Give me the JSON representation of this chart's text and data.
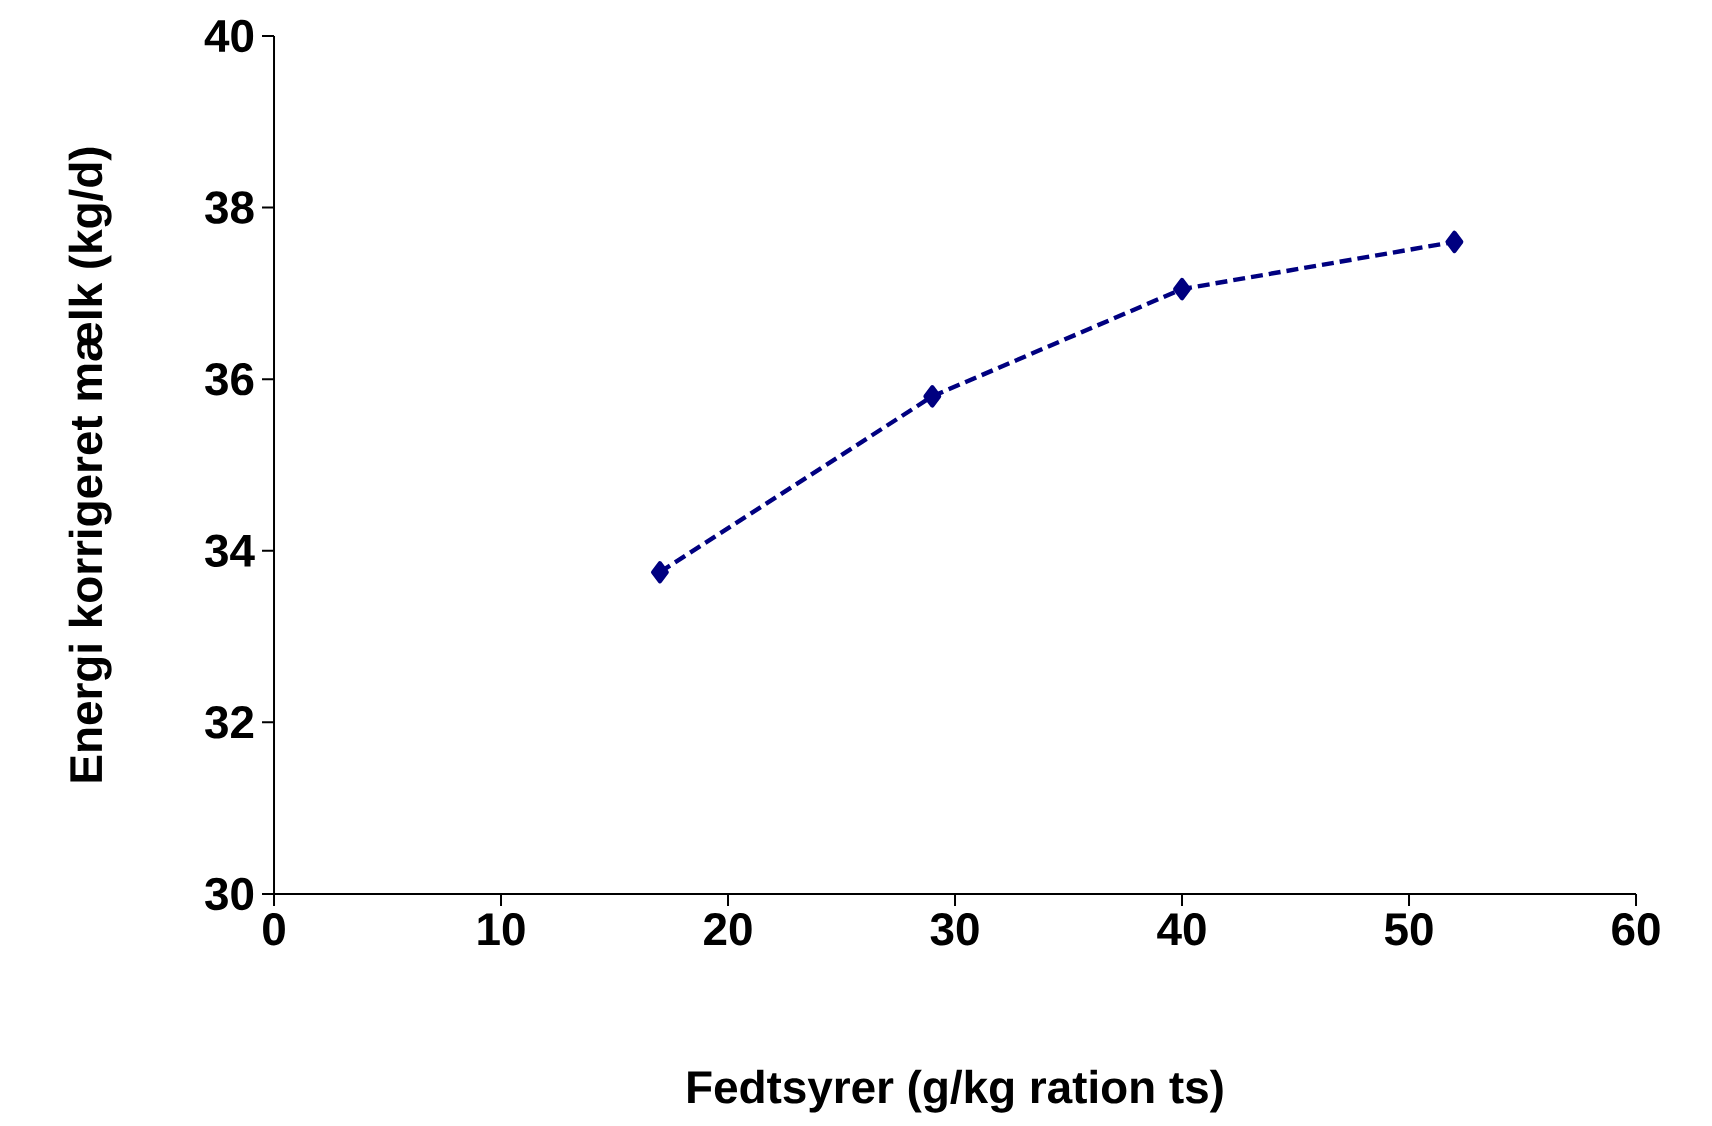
{
  "chart_data": {
    "type": "line",
    "xlabel": "Fedtsyrer (g/kg ration ts)",
    "ylabel": "Energi korrigeret mælk (kg/d)",
    "x": [
      17,
      29,
      40,
      52
    ],
    "series": [
      {
        "color": "#000080",
        "values": [
          33.75,
          35.8,
          37.05,
          37.6
        ]
      }
    ],
    "marker": "diamond",
    "line_style": "dashed",
    "xlim": [
      0,
      60
    ],
    "ylim": [
      30,
      40
    ],
    "xticks": [
      0,
      10,
      20,
      30,
      40,
      50,
      60
    ],
    "yticks": [
      30,
      32,
      34,
      36,
      38,
      40
    ]
  }
}
